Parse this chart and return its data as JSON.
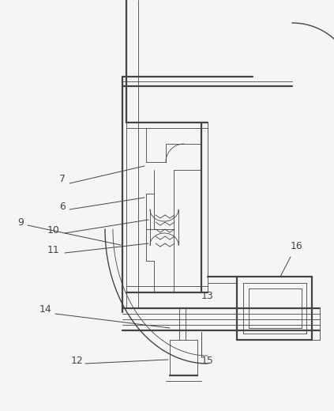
{
  "bg_color": "#f5f5f5",
  "line_color": "#444444",
  "lw_thick": 1.6,
  "lw_mid": 1.0,
  "lw_thin": 0.6,
  "figsize": [
    4.23,
    5.2
  ],
  "dpi": 100
}
